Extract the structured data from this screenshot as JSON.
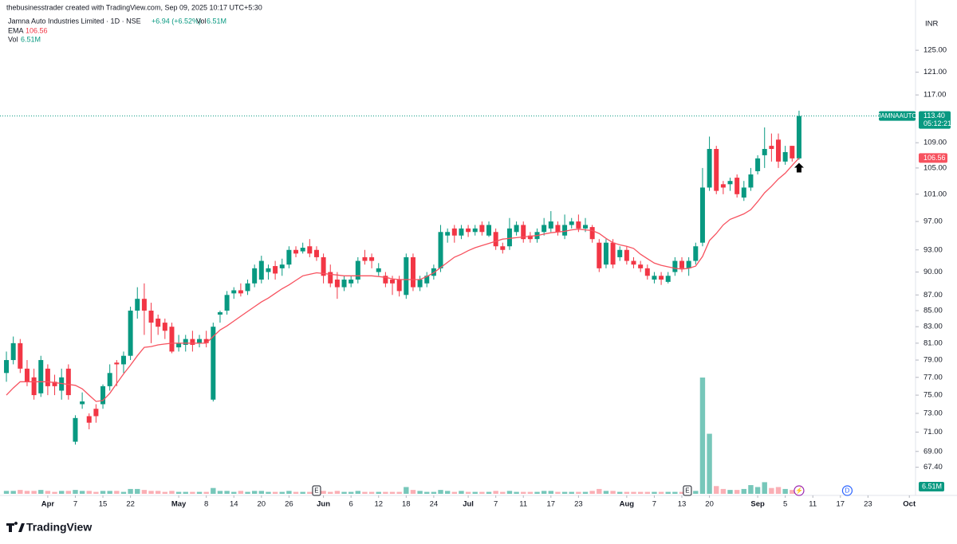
{
  "chart_data": {
    "type": "candlestick",
    "credit": "thebusinesstrader created with TradingView.com, Sep 09, 2025 10:17 UTC+5:30",
    "title": "Jamna Auto Industries Limited · 1D · NSE",
    "change": "+6.94 (+6.52%)",
    "currency": "INR",
    "symbol": "JAMNAAUTO",
    "countdown": "05:12:21",
    "last_close_label": "113.40",
    "brand": "TradingView",
    "up_color": "#089981",
    "down_color": "#f23645",
    "log_scale": true,
    "grid": false,
    "open": [
      77.5,
      79,
      81,
      78,
      77,
      75.2,
      78,
      76.5,
      75.5,
      78,
      70,
      74,
      72.7,
      73.5,
      74,
      76,
      78.7,
      78.5,
      79.5,
      85,
      86.5,
      85,
      84,
      83.5,
      83,
      80.5,
      80.8,
      81.5,
      81,
      81.5,
      74.5,
      84.5,
      85,
      87.2,
      87.6,
      87.5,
      88.5,
      89,
      90,
      90.8,
      90.5,
      91,
      93,
      92.8,
      93.5,
      93,
      92,
      90,
      89,
      88,
      88.5,
      89,
      92,
      92,
      90,
      89.5,
      89,
      89,
      87,
      92,
      88,
      88.5,
      89.5,
      90.5,
      95,
      96,
      95,
      96,
      95.5,
      96.5,
      95,
      95.5,
      93.5,
      93.5,
      95.5,
      96.5,
      95,
      94.5,
      95.5,
      96,
      96.5,
      95,
      96.5,
      97,
      96,
      96.2,
      94,
      91,
      94,
      92,
      93,
      91.5,
      91,
      90.5,
      89,
      89.5,
      88.7,
      90,
      91.5,
      90.5,
      91.5,
      94,
      102,
      108,
      102.5,
      102.5,
      103.5,
      100.5,
      102,
      104.5,
      107,
      108.5,
      109.5,
      106,
      108.5,
      106.5
    ],
    "high": [
      80,
      81.8,
      81.5,
      79,
      78,
      79.5,
      78.5,
      77.3,
      78,
      78.5,
      72.8,
      75.3,
      73,
      74,
      76.2,
      78.5,
      79,
      80,
      85.5,
      88,
      88.5,
      86,
      84.5,
      84,
      83.5,
      82,
      82,
      82.5,
      82,
      82.5,
      83.5,
      85,
      87.5,
      88,
      88.5,
      89,
      91,
      92.2,
      91,
      91.5,
      91.8,
      93.5,
      93.5,
      94,
      94.5,
      93.5,
      92.5,
      91,
      90,
      89.5,
      89.5,
      92,
      93,
      92.5,
      91.2,
      90,
      89.5,
      89.5,
      92.5,
      92.5,
      89.5,
      90,
      91,
      96.5,
      96,
      96.5,
      96.5,
      96.5,
      96.5,
      97,
      97,
      96,
      94,
      97.5,
      97,
      97,
      95.5,
      96,
      97.5,
      98.5,
      97,
      98,
      97.5,
      98,
      97.5,
      96.5,
      94.5,
      94.5,
      94.5,
      93.5,
      93.5,
      92,
      91.5,
      91,
      90,
      90,
      90,
      92,
      92,
      92,
      94,
      105,
      110,
      108.5,
      103,
      103.5,
      104,
      103,
      105,
      107,
      111.5,
      110.5,
      110.5,
      108.5,
      108.5,
      114.3
    ],
    "low": [
      76.5,
      78.5,
      77.5,
      76,
      74.5,
      74.8,
      75,
      75,
      74.5,
      74.5,
      69.7,
      73.5,
      71.3,
      72,
      73.5,
      75.5,
      76,
      77.5,
      79,
      84,
      82,
      81,
      82,
      81.5,
      79.8,
      80,
      80,
      80,
      80.5,
      80.5,
      74.3,
      83.5,
      84.5,
      86.5,
      86.8,
      87,
      88,
      88.5,
      89,
      89,
      89.5,
      90.5,
      92,
      92.5,
      92,
      91.5,
      88.5,
      88,
      86.5,
      87.5,
      88,
      88.5,
      91,
      90.5,
      89.5,
      88,
      87,
      86.8,
      86.5,
      87.5,
      87.5,
      88,
      89,
      90,
      94,
      94,
      94.5,
      94.8,
      95,
      95,
      94.8,
      93,
      92.5,
      93,
      95,
      94,
      94,
      94,
      95,
      95.5,
      95,
      94.5,
      96,
      95.5,
      95.5,
      94,
      90,
      90.5,
      90.5,
      91.5,
      91,
      90.5,
      90,
      89,
      88.5,
      88.3,
      88.5,
      89.5,
      90,
      89.5,
      91,
      93.5,
      101.5,
      101,
      101,
      101.5,
      100.5,
      100,
      101.5,
      104,
      105,
      106,
      105,
      105.5,
      106,
      106.3
    ],
    "close": [
      79,
      81,
      78,
      76.5,
      75,
      79,
      76,
      76,
      77,
      75,
      72.5,
      74.3,
      72,
      72.7,
      76,
      77.5,
      78.5,
      79.5,
      85,
      86.5,
      85,
      83.5,
      83,
      82.5,
      80,
      81,
      81.5,
      80.8,
      81.5,
      81,
      83,
      84.8,
      87,
      87.6,
      87.2,
      88.5,
      90.5,
      91.5,
      90.5,
      89.8,
      91,
      93,
      92.5,
      93.3,
      92.5,
      92,
      89.5,
      88.5,
      88,
      89,
      89,
      91.5,
      91.5,
      91.5,
      90.5,
      88.5,
      88.5,
      87.5,
      92,
      88,
      89,
      89.5,
      90.5,
      95.5,
      95.5,
      95,
      96,
      95.5,
      96,
      95.5,
      96.5,
      93.5,
      93,
      96,
      96.5,
      94.5,
      94.5,
      95.5,
      96.5,
      97,
      95.5,
      96.5,
      97,
      96,
      96.5,
      94.5,
      90.5,
      94,
      91,
      93,
      91.5,
      91,
      90.5,
      89.5,
      89.5,
      89,
      89.5,
      91.5,
      90.5,
      91.5,
      93.5,
      102,
      108,
      101.5,
      102,
      103,
      101,
      102,
      104,
      106.5,
      108,
      108,
      106,
      107.5,
      106.5,
      113.4
    ],
    "ema": {
      "name": "EMA",
      "color": "#f7525f",
      "values": [
        75,
        75.8,
        76.5,
        76.5,
        76.5,
        76.5,
        76.5,
        76.4,
        76.3,
        76.2,
        76.1,
        75.7,
        75,
        74.3,
        74.4,
        75.2,
        76.3,
        77.4,
        78.4,
        79.5,
        80.5,
        80.6,
        80.8,
        80.9,
        81,
        81,
        81,
        81,
        81,
        81,
        81.8,
        82.6,
        83.1,
        83.7,
        84.3,
        84.9,
        85.5,
        86.1,
        86.6,
        87.2,
        87.8,
        88.3,
        88.9,
        89.5,
        89.7,
        89.9,
        89.8,
        89.7,
        89.6,
        89.5,
        89.5,
        89.5,
        89.5,
        89.5,
        89.4,
        89.3,
        89.1,
        89,
        89,
        89,
        89,
        89.4,
        89.9,
        90.6,
        91.3,
        92,
        92.4,
        92.9,
        93.3,
        93.6,
        93.9,
        94.2,
        94.5,
        94.6,
        94.7,
        94.8,
        94.9,
        95,
        95.2,
        95.4,
        95.5,
        95.6,
        95.8,
        95.9,
        95.8,
        95.7,
        95.3,
        94.6,
        94,
        93.7,
        93.5,
        93.2,
        92.4,
        91.8,
        91.2,
        90.9,
        90.7,
        90.5,
        90.4,
        90.5,
        90.8,
        92.1,
        94.3,
        95.3,
        96.5,
        97.3,
        97.7,
        98.1,
        98.7,
        99.9,
        101.2,
        102.2,
        103.3,
        104.2,
        105.4,
        106.56
      ]
    },
    "volume": {
      "name": "Vol",
      "last_label": "6.51M",
      "y2lim": [
        0,
        120
      ],
      "values": [
        3,
        3,
        4,
        3,
        3,
        4,
        3,
        2,
        3,
        3,
        4,
        3,
        3,
        2,
        3,
        3,
        3,
        2,
        5,
        5,
        4,
        3,
        3,
        2,
        3,
        2,
        2,
        2,
        2,
        2,
        6,
        3,
        3,
        2,
        3,
        2,
        3,
        3,
        2,
        2,
        2,
        3,
        2,
        2,
        2,
        2,
        3,
        2,
        3,
        2,
        2,
        3,
        2,
        2,
        2,
        2,
        2,
        2,
        7,
        4,
        3,
        2,
        2,
        4,
        3,
        2,
        3,
        2,
        2,
        2,
        2,
        3,
        2,
        3,
        2,
        2,
        2,
        2,
        3,
        3,
        2,
        2,
        2,
        2,
        2,
        3,
        5,
        3,
        3,
        2,
        2,
        2,
        2,
        2,
        2,
        2,
        2,
        2,
        2,
        2,
        3,
        120,
        62,
        8,
        5,
        4,
        4,
        5,
        9,
        7,
        12,
        6,
        7,
        5,
        4,
        6.51
      ]
    },
    "ylim": [
      64.8,
      132.3
    ],
    "yticks": [
      {
        "value": 125,
        "label": "125.00"
      },
      {
        "value": 121,
        "label": "121.00"
      },
      {
        "value": 117,
        "label": "117.00"
      },
      {
        "value": 109,
        "label": "109.00"
      },
      {
        "value": 105,
        "label": "105.00"
      },
      {
        "value": 101,
        "label": "101.00"
      },
      {
        "value": 97,
        "label": "97.00"
      },
      {
        "value": 93,
        "label": "93.00"
      },
      {
        "value": 90,
        "label": "90.00"
      },
      {
        "value": 87,
        "label": "87.00"
      },
      {
        "value": 85,
        "label": "85.00"
      },
      {
        "value": 83,
        "label": "83.00"
      },
      {
        "value": 81,
        "label": "81.00"
      },
      {
        "value": 79,
        "label": "79.00"
      },
      {
        "value": 77,
        "label": "77.00"
      },
      {
        "value": 75,
        "label": "75.00"
      },
      {
        "value": 73,
        "label": "73.00"
      },
      {
        "value": 71,
        "label": "71.00"
      },
      {
        "value": 69,
        "label": "69.00"
      },
      {
        "value": 67.4,
        "label": "67.40"
      }
    ],
    "xlim": [
      -0.93,
      131.9
    ],
    "xticks": [
      {
        "value": 6,
        "label": "Apr"
      },
      {
        "value": 10,
        "label": "7"
      },
      {
        "value": 14,
        "label": "15"
      },
      {
        "value": 18,
        "label": "22"
      },
      {
        "value": 25,
        "label": "May"
      },
      {
        "value": 29,
        "label": "8"
      },
      {
        "value": 33,
        "label": "14"
      },
      {
        "value": 37,
        "label": "20"
      },
      {
        "value": 41,
        "label": "26"
      },
      {
        "value": 46,
        "label": "Jun"
      },
      {
        "value": 50,
        "label": "6"
      },
      {
        "value": 54,
        "label": "12"
      },
      {
        "value": 58,
        "label": "18"
      },
      {
        "value": 62,
        "label": "24"
      },
      {
        "value": 67,
        "label": "Jul"
      },
      {
        "value": 71,
        "label": "7"
      },
      {
        "value": 75,
        "label": "11"
      },
      {
        "value": 79,
        "label": "17"
      },
      {
        "value": 83,
        "label": "23"
      },
      {
        "value": 90,
        "label": "Aug"
      },
      {
        "value": 94,
        "label": "7"
      },
      {
        "value": 98,
        "label": "13"
      },
      {
        "value": 102,
        "label": "20"
      },
      {
        "value": 109,
        "label": "Sep"
      },
      {
        "value": 113,
        "label": "5"
      },
      {
        "value": 117,
        "label": "11"
      },
      {
        "value": 121,
        "label": "17"
      },
      {
        "value": 125,
        "label": "23"
      },
      {
        "value": 131,
        "label": "Oct"
      }
    ],
    "events": [
      {
        "label": "E"
      },
      {
        "label": "E"
      },
      {
        "label": "⚡"
      },
      {
        "label": "D"
      }
    ]
  }
}
